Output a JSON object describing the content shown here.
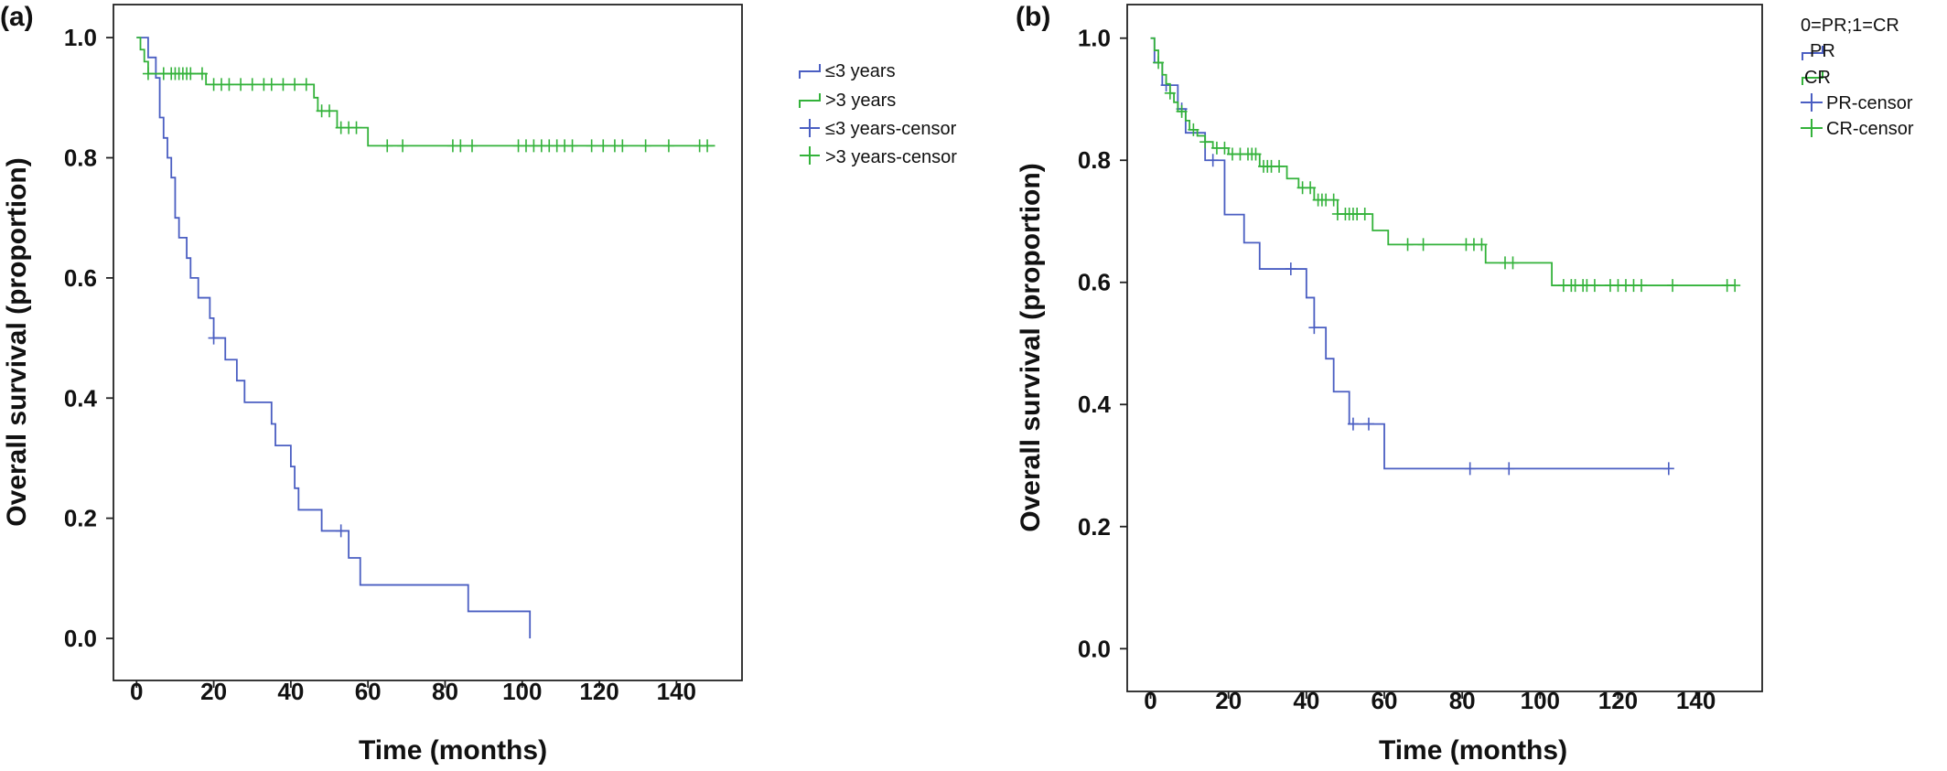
{
  "chart_data": [
    {
      "type": "line",
      "panel_label": "(a)",
      "xlabel": "Time (months)",
      "ylabel": "Overall survival (proportion)",
      "xlim": [
        -6,
        157
      ],
      "ylim": [
        -0.07,
        1.055
      ],
      "xticks": [
        0,
        20,
        40,
        60,
        80,
        100,
        120,
        140
      ],
      "yticks": [
        0.0,
        0.2,
        0.4,
        0.6,
        0.8,
        1.0
      ],
      "ytick_labels": [
        "0.0",
        "0.2",
        "0.4",
        "0.6",
        "0.8",
        "1.0"
      ],
      "grid": false,
      "legend_position": "right",
      "legend_title": "",
      "series": [
        {
          "name": "≤3 years",
          "color": "#4a5ec2",
          "steps": [
            [
              0,
              1.0
            ],
            [
              3,
              0.967
            ],
            [
              5,
              0.933
            ],
            [
              6,
              0.867
            ],
            [
              7,
              0.833
            ],
            [
              8,
              0.8
            ],
            [
              9,
              0.767
            ],
            [
              10,
              0.7
            ],
            [
              11,
              0.667
            ],
            [
              13,
              0.633
            ],
            [
              14,
              0.6
            ],
            [
              16,
              0.567
            ],
            [
              19,
              0.533
            ],
            [
              20,
              0.5
            ],
            [
              23,
              0.464
            ],
            [
              26,
              0.429
            ],
            [
              28,
              0.393
            ],
            [
              35,
              0.357
            ],
            [
              36,
              0.321
            ],
            [
              40,
              0.286
            ],
            [
              41,
              0.25
            ],
            [
              42,
              0.214
            ],
            [
              48,
              0.179
            ],
            [
              55,
              0.134
            ],
            [
              58,
              0.089
            ],
            [
              86,
              0.045
            ],
            [
              102,
              0.0
            ]
          ],
          "x_end": 102,
          "censor_x": [
            20,
            53
          ]
        },
        {
          "name": ">3 years",
          "color": "#33b23a",
          "steps": [
            [
              0,
              1.0
            ],
            [
              1,
              0.98
            ],
            [
              2,
              0.96
            ],
            [
              3,
              0.94
            ],
            [
              18,
              0.922
            ],
            [
              46,
              0.9
            ],
            [
              47,
              0.878
            ],
            [
              52,
              0.85
            ],
            [
              60,
              0.82
            ]
          ],
          "x_end": 150,
          "censor_x": [
            3,
            7,
            9,
            10,
            11,
            12,
            13,
            14,
            17,
            20,
            22,
            24,
            27,
            30,
            33,
            35,
            38,
            41,
            44,
            48,
            50,
            53,
            55,
            57,
            65,
            69,
            82,
            84,
            87,
            99,
            101,
            103,
            105,
            107,
            109,
            111,
            113,
            118,
            121,
            124,
            126,
            132,
            138,
            146,
            148
          ]
        }
      ],
      "legend": [
        "≤3 years",
        ">3 years",
        "≤3 years-censor",
        ">3 years-censor"
      ]
    },
    {
      "type": "line",
      "panel_label": "(b)",
      "xlabel": "Time (months)",
      "ylabel": "Overall survival (proportion)",
      "xlim": [
        -6,
        157
      ],
      "ylim": [
        -0.07,
        1.055
      ],
      "xticks": [
        0,
        20,
        40,
        60,
        80,
        100,
        120,
        140
      ],
      "yticks": [
        0.0,
        0.2,
        0.4,
        0.6,
        0.8,
        1.0
      ],
      "ytick_labels": [
        "0.0",
        "0.2",
        "0.4",
        "0.6",
        "0.8",
        "1.0"
      ],
      "grid": false,
      "legend_position": "top-right",
      "legend_title": "0=PR;1=CR",
      "series": [
        {
          "name": "PR",
          "color": "#4a5ec2",
          "steps": [
            [
              0,
              1.0
            ],
            [
              1,
              0.96
            ],
            [
              3,
              0.923
            ],
            [
              7,
              0.884
            ],
            [
              9,
              0.845
            ],
            [
              14,
              0.8
            ],
            [
              19,
              0.711
            ],
            [
              24,
              0.665
            ],
            [
              28,
              0.622
            ],
            [
              40,
              0.575
            ],
            [
              42,
              0.526
            ],
            [
              45,
              0.475
            ],
            [
              47,
              0.421
            ],
            [
              51,
              0.368
            ],
            [
              60,
              0.295
            ]
          ],
          "x_end": 133,
          "censor_x": [
            4,
            8,
            16,
            36,
            42,
            52,
            56,
            82,
            92,
            133
          ]
        },
        {
          "name": "CR",
          "color": "#33b23a",
          "steps": [
            [
              0,
              1.0
            ],
            [
              1,
              0.98
            ],
            [
              2,
              0.96
            ],
            [
              3,
              0.94
            ],
            [
              4,
              0.925
            ],
            [
              5,
              0.91
            ],
            [
              6,
              0.895
            ],
            [
              7,
              0.88
            ],
            [
              9,
              0.865
            ],
            [
              10,
              0.85
            ],
            [
              12,
              0.84
            ],
            [
              14,
              0.83
            ],
            [
              16,
              0.82
            ],
            [
              20,
              0.81
            ],
            [
              28,
              0.79
            ],
            [
              35,
              0.77
            ],
            [
              38,
              0.755
            ],
            [
              42,
              0.735
            ],
            [
              48,
              0.712
            ],
            [
              57,
              0.685
            ],
            [
              61,
              0.662
            ],
            [
              86,
              0.632
            ],
            [
              103,
              0.595
            ]
          ],
          "x_end": 150,
          "censor_x": [
            2,
            5,
            8,
            11,
            14,
            17,
            19,
            21,
            23,
            25,
            26,
            27,
            29,
            30,
            31,
            33,
            39,
            41,
            43,
            44,
            45,
            47,
            48,
            50,
            51,
            52,
            53,
            55,
            66,
            70,
            81,
            83,
            85,
            91,
            93,
            106,
            108,
            109,
            111,
            112,
            114,
            118,
            120,
            122,
            124,
            126,
            134,
            148,
            150
          ]
        }
      ],
      "legend": [
        "PR",
        "CR",
        "PR-censor",
        "CR-censor"
      ]
    }
  ]
}
